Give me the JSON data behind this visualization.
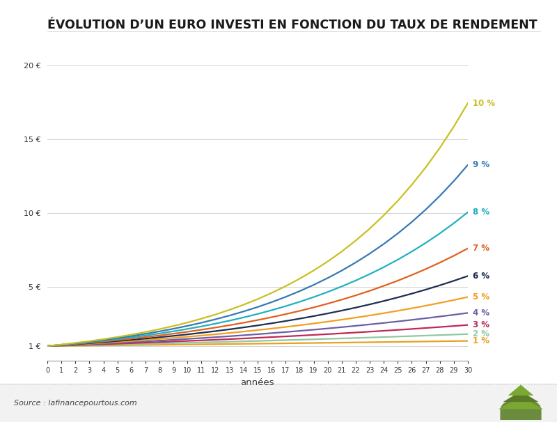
{
  "title": "ÉVOLUTION D’UN EURO INVESTI EN FONCTION DU TAUX DE RENDEMENT",
  "xlabel": "années",
  "source": "Source : lafinancepourtous.com",
  "rates": [
    1,
    2,
    3,
    4,
    5,
    6,
    7,
    8,
    9,
    10
  ],
  "line_colors": [
    "#E8A020",
    "#90C8A0",
    "#C02858",
    "#6B5EA7",
    "#F0A020",
    "#1C2E50",
    "#E06020",
    "#20B0C0",
    "#3878B0",
    "#C8C020"
  ],
  "ylim_min": 0,
  "ylim_max": 21,
  "yticks": [
    1,
    5,
    10,
    15,
    20
  ],
  "ytick_labels": [
    "1 €",
    "5 €",
    "10 €",
    "15 €",
    "20 €"
  ],
  "xlim_min": 0,
  "xlim_max": 30,
  "title_fontsize": 12.5,
  "tick_fontsize": 8,
  "xlabel_fontsize": 9.5,
  "bg_color": "#FFFFFF",
  "footer_bg": "#F2F2F2",
  "grid_color": "#CCCCCC",
  "text_color": "#333333",
  "spine_color": "#999999",
  "line_width": 1.6,
  "label_fontsize": 8.5
}
